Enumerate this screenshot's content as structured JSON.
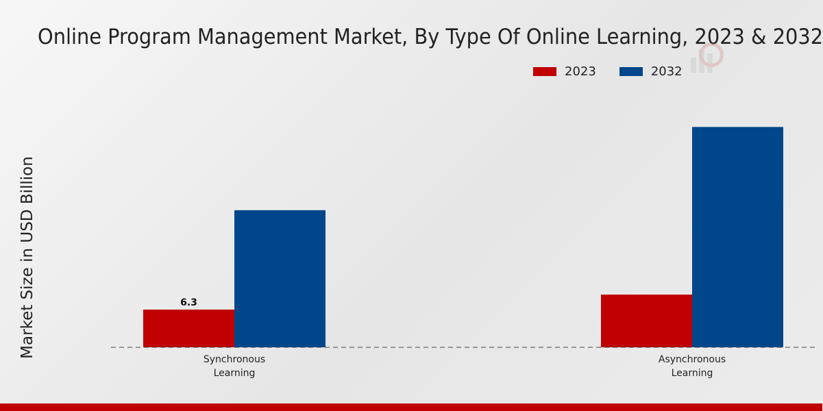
{
  "chart_data": {
    "type": "bar",
    "title": "Online Program Management Market, By Type Of Online Learning, 2023 & 2032",
    "xlabel": "",
    "ylabel": "Market Size in USD Billion",
    "categories": [
      [
        "Synchronous",
        "Learning"
      ],
      [
        "Asynchronous",
        "Learning"
      ]
    ],
    "series": [
      {
        "name": "2023",
        "color": "#c00000",
        "values": [
          6.3,
          8.8
        ]
      },
      {
        "name": "2032",
        "color": "#00468b",
        "values": [
          22.9,
          36.8
        ]
      }
    ],
    "data_labels": [
      {
        "series": 0,
        "category": 0,
        "text": "6.3"
      }
    ],
    "ylim": [
      0,
      50
    ],
    "grid": false,
    "baseline": "dashed",
    "legend_position": "top-right"
  }
}
